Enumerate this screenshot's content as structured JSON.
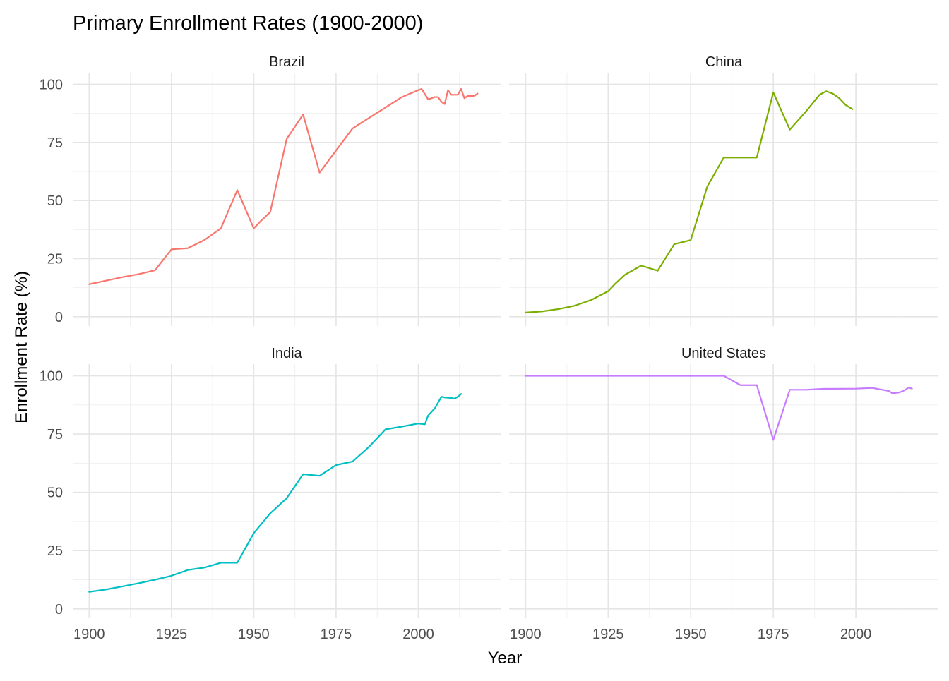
{
  "chart_data": {
    "type": "line",
    "title": "Primary Enrollment Rates (1900-2000)",
    "xlabel": "Year",
    "ylabel": "Enrollment Rate (%)",
    "xlim": [
      1895,
      2025
    ],
    "ylim": [
      -4,
      105
    ],
    "x_ticks": [
      1900,
      1925,
      1950,
      1975,
      2000
    ],
    "y_ticks": [
      0,
      25,
      50,
      75,
      100
    ],
    "grid": true,
    "legend": "none",
    "facets": [
      {
        "name": "Brazil",
        "color": "#F8766D",
        "points": [
          [
            1900,
            14
          ],
          [
            1905,
            15.5
          ],
          [
            1910,
            17
          ],
          [
            1915,
            18.3
          ],
          [
            1920,
            20
          ],
          [
            1925,
            29
          ],
          [
            1930,
            29.5
          ],
          [
            1935,
            33
          ],
          [
            1940,
            38
          ],
          [
            1945,
            54.5
          ],
          [
            1950,
            38
          ],
          [
            1952,
            41
          ],
          [
            1955,
            45
          ],
          [
            1960,
            76.5
          ],
          [
            1965,
            87
          ],
          [
            1970,
            62
          ],
          [
            1975,
            71.5
          ],
          [
            1980,
            81
          ],
          [
            1985,
            85.5
          ],
          [
            1990,
            90
          ],
          [
            1995,
            94.5
          ],
          [
            2000,
            97.5
          ],
          [
            2001,
            98
          ],
          [
            2003,
            93.5
          ],
          [
            2005,
            94.5
          ],
          [
            2006,
            94.5
          ],
          [
            2007,
            92.5
          ],
          [
            2008,
            91.5
          ],
          [
            2009,
            97.5
          ],
          [
            2010,
            95.5
          ],
          [
            2012,
            95.5
          ],
          [
            2013,
            98
          ],
          [
            2014,
            94
          ],
          [
            2015,
            95
          ],
          [
            2016,
            95
          ],
          [
            2017,
            95
          ],
          [
            2018,
            96
          ]
        ]
      },
      {
        "name": "China",
        "color": "#7CAE00",
        "points": [
          [
            1900,
            1.8
          ],
          [
            1905,
            2.3
          ],
          [
            1910,
            3.3
          ],
          [
            1915,
            4.8
          ],
          [
            1920,
            7.3
          ],
          [
            1925,
            11
          ],
          [
            1927,
            14
          ],
          [
            1930,
            18
          ],
          [
            1935,
            22
          ],
          [
            1940,
            19.8
          ],
          [
            1945,
            31.2
          ],
          [
            1950,
            33
          ],
          [
            1955,
            56
          ],
          [
            1960,
            68.5
          ],
          [
            1965,
            68.5
          ],
          [
            1970,
            68.5
          ],
          [
            1975,
            96.5
          ],
          [
            1980,
            80.5
          ],
          [
            1985,
            88.5
          ],
          [
            1989,
            95.5
          ],
          [
            1991,
            97
          ],
          [
            1993,
            96
          ],
          [
            1995,
            94
          ],
          [
            1997,
            91
          ],
          [
            1999,
            89.3
          ]
        ]
      },
      {
        "name": "India",
        "color": "#00BFC4",
        "points": [
          [
            1900,
            7.3
          ],
          [
            1905,
            8.3
          ],
          [
            1910,
            9.6
          ],
          [
            1915,
            11
          ],
          [
            1920,
            12.5
          ],
          [
            1925,
            14.2
          ],
          [
            1930,
            16.7
          ],
          [
            1935,
            17.7
          ],
          [
            1940,
            19.8
          ],
          [
            1945,
            19.8
          ],
          [
            1950,
            32.5
          ],
          [
            1955,
            41
          ],
          [
            1960,
            47.5
          ],
          [
            1965,
            57.8
          ],
          [
            1970,
            57.1
          ],
          [
            1975,
            61.7
          ],
          [
            1980,
            63.2
          ],
          [
            1985,
            69.5
          ],
          [
            1990,
            77
          ],
          [
            1995,
            78.2
          ],
          [
            2000,
            79.5
          ],
          [
            2002,
            79.2
          ],
          [
            2003,
            83
          ],
          [
            2005,
            86
          ],
          [
            2007,
            91
          ],
          [
            2008,
            90.7
          ],
          [
            2010,
            90.5
          ],
          [
            2011,
            90.2
          ],
          [
            2012,
            91
          ],
          [
            2013,
            92.2
          ]
        ]
      },
      {
        "name": "United States",
        "color": "#C77CFF",
        "points": [
          [
            1900,
            100
          ],
          [
            1910,
            100
          ],
          [
            1920,
            100
          ],
          [
            1930,
            100
          ],
          [
            1940,
            100
          ],
          [
            1950,
            100
          ],
          [
            1960,
            100
          ],
          [
            1965,
            96
          ],
          [
            1970,
            96
          ],
          [
            1975,
            72.5
          ],
          [
            1980,
            94
          ],
          [
            1985,
            94
          ],
          [
            1990,
            94.4
          ],
          [
            2000,
            94.5
          ],
          [
            2005,
            94.8
          ],
          [
            2008,
            94
          ],
          [
            2010,
            93.5
          ],
          [
            2011,
            92.5
          ],
          [
            2013,
            92.8
          ],
          [
            2014,
            93.3
          ],
          [
            2015,
            94
          ],
          [
            2016,
            95
          ],
          [
            2017,
            94.5
          ]
        ]
      }
    ]
  }
}
